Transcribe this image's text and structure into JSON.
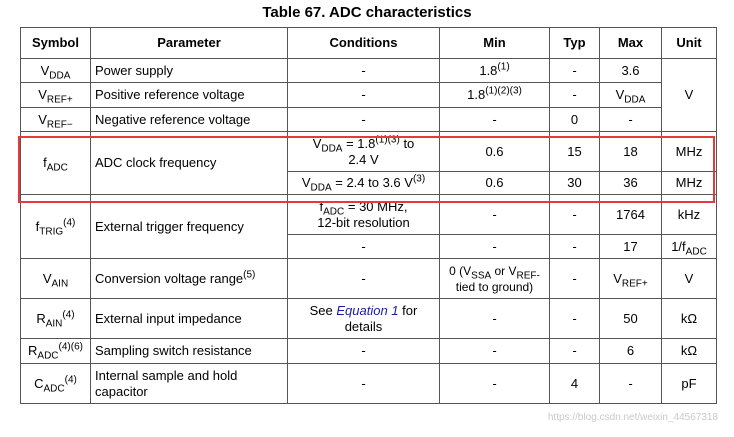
{
  "title": "Table 67. ADC characteristics",
  "headers": {
    "symbol": "Symbol",
    "parameter": "Parameter",
    "conditions": "Conditions",
    "min": "Min",
    "typ": "Typ",
    "max": "Max",
    "unit": "Unit"
  },
  "rows": {
    "vdda": {
      "sym": "V",
      "sym_sub": "DDA",
      "param": "Power supply",
      "cond": "-",
      "min": "1.8",
      "min_sup": "(1)",
      "typ": "-",
      "max": "3.6"
    },
    "vref_plus": {
      "sym": "V",
      "sym_sub": "REF+",
      "param": "Positive reference voltage",
      "cond": "-",
      "min": "1.8",
      "min_sup": "(1)(2)(3)",
      "typ": "-",
      "max": "V",
      "max_sub": "DDA"
    },
    "unit_v": "V",
    "vref_minus": {
      "sym": "V",
      "sym_sub": "REF−",
      "param": "Negative reference voltage",
      "cond": "-",
      "min": "-",
      "typ": "0",
      "max": "-"
    },
    "fadc": {
      "sym": "f",
      "sym_sub": "ADC",
      "param": "ADC clock frequency",
      "c1_pre": "V",
      "c1_sub": "DDA",
      "c1_mid": " = 1.8",
      "c1_sup": "(1)(3)",
      "c1_post": " to",
      "c1_line2": "2.4 V",
      "r1_min": "0.6",
      "r1_typ": "15",
      "r1_max": "18",
      "r1_unit": "MHz",
      "c2_pre": "V",
      "c2_sub": "DDA",
      "c2_mid": " = 2.4 to 3.6 V",
      "c2_sup": "(3)",
      "r2_min": "0.6",
      "r2_typ": "30",
      "r2_max": "36",
      "r2_unit": "MHz"
    },
    "ftrig": {
      "sym": "f",
      "sym_sub": "TRIG",
      "sym_sup": "(4)",
      "param": "External trigger frequency",
      "c1_pre": "f",
      "c1_sub": "ADC",
      "c1_post": " = 30 MHz,",
      "c1_line2": "12-bit resolution",
      "r1_min": "-",
      "r1_typ": "-",
      "r1_max": "1764",
      "r1_unit": "kHz",
      "c2": "-",
      "r2_min": "-",
      "r2_typ": "-",
      "r2_max": "17",
      "r2_unit_pre": "1/f",
      "r2_unit_sub": "ADC"
    },
    "vain": {
      "sym": "V",
      "sym_sub": "AIN",
      "param": "Conversion voltage range",
      "param_sup": "(5)",
      "cond": "-",
      "min_a": "0 (V",
      "min_sub1": "SSA",
      "min_b": " or V",
      "min_sub2": "REF-",
      "min_line2": "tied to ground)",
      "typ": "-",
      "max": "V",
      "max_sub": "REF+",
      "unit": "V"
    },
    "rain": {
      "sym": "R",
      "sym_sub": "AIN",
      "sym_sup": "(4)",
      "param": "External input impedance",
      "cond_pre": "See ",
      "cond_link": "Equation 1",
      "cond_post": " for",
      "cond_line2": "details",
      "min": "-",
      "typ": "-",
      "max": "50",
      "unit": "kΩ"
    },
    "radc": {
      "sym": "R",
      "sym_sub": "ADC",
      "sym_sup": "(4)(6)",
      "param": "Sampling switch resistance",
      "cond": "-",
      "min": "-",
      "typ": "-",
      "max": "6",
      "unit": "kΩ"
    },
    "cadc": {
      "sym": "C",
      "sym_sub": "ADC",
      "sym_sup": "(4)",
      "param": "Internal sample and hold",
      "param_line2": "capacitor",
      "cond": "-",
      "min": "-",
      "typ": "4",
      "max": "-",
      "unit": "pF"
    }
  },
  "watermark": "https://blog.csdn.net/weixin_44567318",
  "highlight_color": "#e33b3b"
}
